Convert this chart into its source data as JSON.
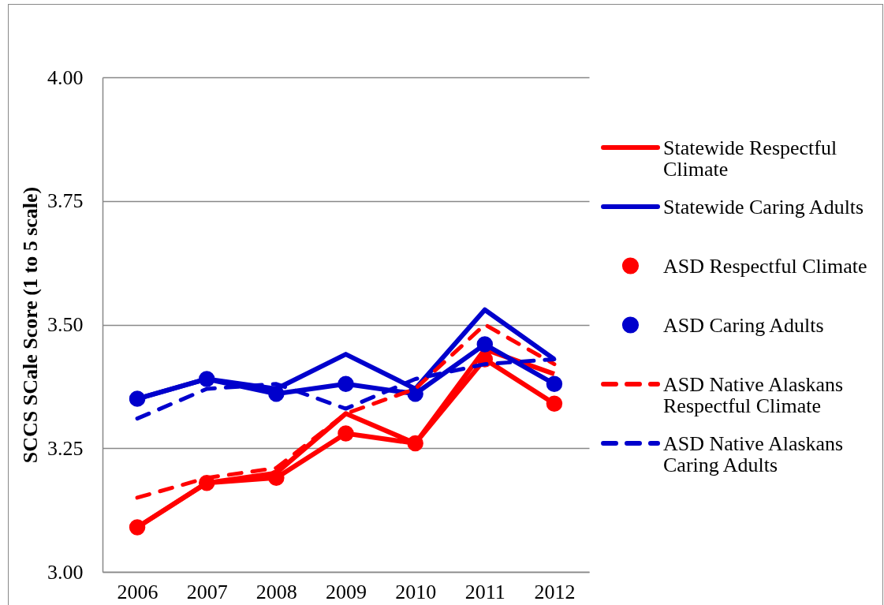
{
  "chart_data": {
    "type": "line",
    "ylabel": "SCCS SCale Score (1 to 5 scale)",
    "categories": [
      "2006",
      "2007",
      "2008",
      "2009",
      "2010",
      "2011",
      "2012"
    ],
    "series": [
      {
        "name": "Statewide Respectful Climate",
        "color": "#ff0000",
        "values": [
          3.09,
          3.18,
          3.2,
          3.32,
          3.26,
          3.45,
          3.4
        ]
      },
      {
        "name": "Statewide Caring Adults",
        "color": "#0000cc",
        "values": [
          3.35,
          3.39,
          3.37,
          3.44,
          3.37,
          3.53,
          3.43
        ]
      },
      {
        "name": "ASD Respectful Climate",
        "color": "#ff0000",
        "marker": "circle",
        "values": [
          3.09,
          3.18,
          3.19,
          3.28,
          3.26,
          3.43,
          3.34
        ]
      },
      {
        "name": "ASD Caring Adults",
        "color": "#0000cc",
        "marker": "circle",
        "values": [
          3.35,
          3.39,
          3.36,
          3.38,
          3.36,
          3.46,
          3.38
        ]
      },
      {
        "name": "ASD Native Alaskans Respectful Climate",
        "color": "#ff0000",
        "line_style": "dashed",
        "values": [
          3.15,
          3.19,
          3.21,
          3.32,
          3.37,
          3.5,
          3.42
        ]
      },
      {
        "name": "ASD Native Alaskans Caring Adults",
        "color": "#0000cc",
        "line_style": "dashed",
        "values": [
          3.31,
          3.37,
          3.38,
          3.33,
          3.39,
          3.42,
          3.43
        ]
      }
    ],
    "ylim": [
      3,
      4
    ],
    "yticks": [
      {
        "value": 3,
        "label": "3.00"
      },
      {
        "value": 3.25,
        "label": "3.25"
      },
      {
        "value": 3.5,
        "label": "3.50"
      },
      {
        "value": 3.75,
        "label": "3.75"
      },
      {
        "value": 4,
        "label": "4.00"
      }
    ],
    "grid": "y",
    "legend": "right",
    "line_style": "solid"
  }
}
